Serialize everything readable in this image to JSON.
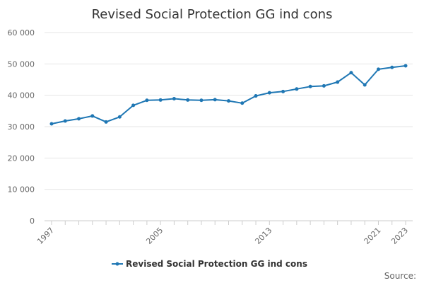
{
  "chart_data": {
    "type": "line",
    "title": "Revised Social Protection GG ind cons",
    "xlabel": "",
    "ylabel": "",
    "x": [
      1997,
      1998,
      1999,
      2000,
      2001,
      2002,
      2003,
      2004,
      2005,
      2006,
      2007,
      2008,
      2009,
      2010,
      2011,
      2012,
      2013,
      2014,
      2015,
      2016,
      2017,
      2018,
      2019,
      2020,
      2021,
      2022,
      2023
    ],
    "x_tick_labels": [
      "1997",
      "2005",
      "2013",
      "2021",
      "2023"
    ],
    "x_tick_values": [
      1997,
      2005,
      2013,
      2021,
      2023
    ],
    "y_tick_labels": [
      "0",
      "10 000",
      "20 000",
      "30 000",
      "40 000",
      "50 000",
      "60 000"
    ],
    "y_tick_values": [
      0,
      10000,
      20000,
      30000,
      40000,
      50000,
      60000
    ],
    "ylim": [
      0,
      60000
    ],
    "grid": true,
    "series": [
      {
        "name": "Revised Social Protection GG ind cons",
        "color": "#1f77b4",
        "values": [
          30900,
          31800,
          32500,
          33400,
          31500,
          33100,
          36800,
          38400,
          38500,
          38900,
          38500,
          38400,
          38600,
          38200,
          37500,
          39800,
          40800,
          41200,
          42000,
          42800,
          43000,
          44200,
          47200,
          43300,
          48300,
          48900,
          49400
        ]
      }
    ],
    "legend_position": "bottom",
    "source_label": "Source:"
  }
}
